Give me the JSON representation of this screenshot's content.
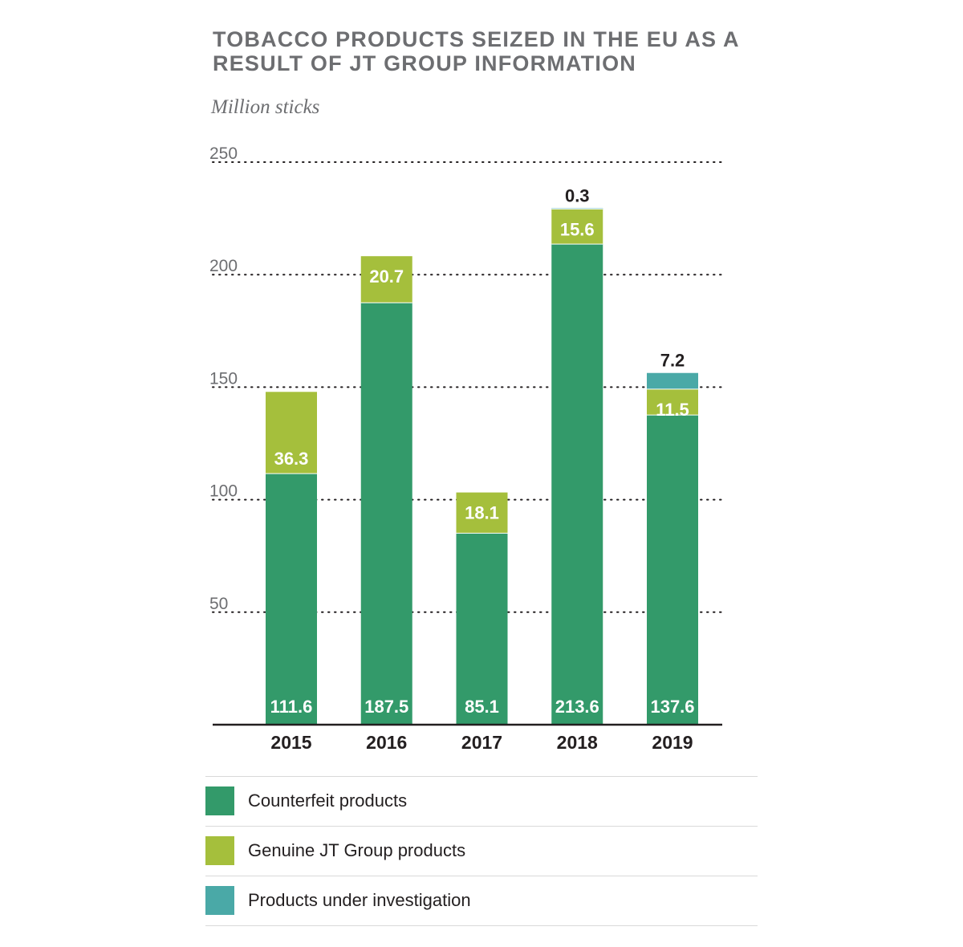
{
  "title": "TOBACCO PRODUCTS SEIZED IN THE EU AS A RESULT OF JT GROUP INFORMATION",
  "unit_label": "Million sticks",
  "colors": {
    "counterfeit": "#339a6a",
    "genuine": "#a5bf3c",
    "investigation": "#4aa9a7",
    "gridline": "#231f20",
    "axis": "#231f20"
  },
  "legend": [
    {
      "key": "counterfeit",
      "label": "Counterfeit products"
    },
    {
      "key": "genuine",
      "label": "Genuine JT Group products"
    },
    {
      "key": "investigation",
      "label": "Products under investigation"
    }
  ],
  "chart_data": {
    "type": "bar",
    "stacked": true,
    "title": "TOBACCO PRODUCTS SEIZED IN THE EU AS A RESULT OF JT GROUP INFORMATION",
    "ylabel": "Million sticks",
    "xlabel": "",
    "categories": [
      "2015",
      "2016",
      "2017",
      "2018",
      "2019"
    ],
    "series": [
      {
        "name": "Counterfeit products",
        "key": "counterfeit",
        "values": [
          111.6,
          187.5,
          85.1,
          213.6,
          137.6
        ],
        "labels": [
          "111.6",
          "187.5",
          "85.1",
          "213.6",
          "137.6"
        ]
      },
      {
        "name": "Genuine JT Group products",
        "key": "genuine",
        "values": [
          36.3,
          20.7,
          18.1,
          15.6,
          11.5
        ],
        "labels": [
          "36.3",
          "20.7",
          "18.1",
          "15.6",
          "11.5"
        ]
      },
      {
        "name": "Products under investigation",
        "key": "investigation",
        "values": [
          0,
          0,
          0,
          0.3,
          7.2
        ],
        "labels": [
          "",
          "",
          "",
          "0.3",
          "7.2"
        ]
      }
    ],
    "yticks": [
      50,
      100,
      150,
      200,
      250
    ],
    "ytick_labels": [
      "50",
      "100",
      "150",
      "200",
      "250"
    ],
    "ylim": [
      0,
      250
    ],
    "grid": true,
    "legend_position": "bottom"
  }
}
